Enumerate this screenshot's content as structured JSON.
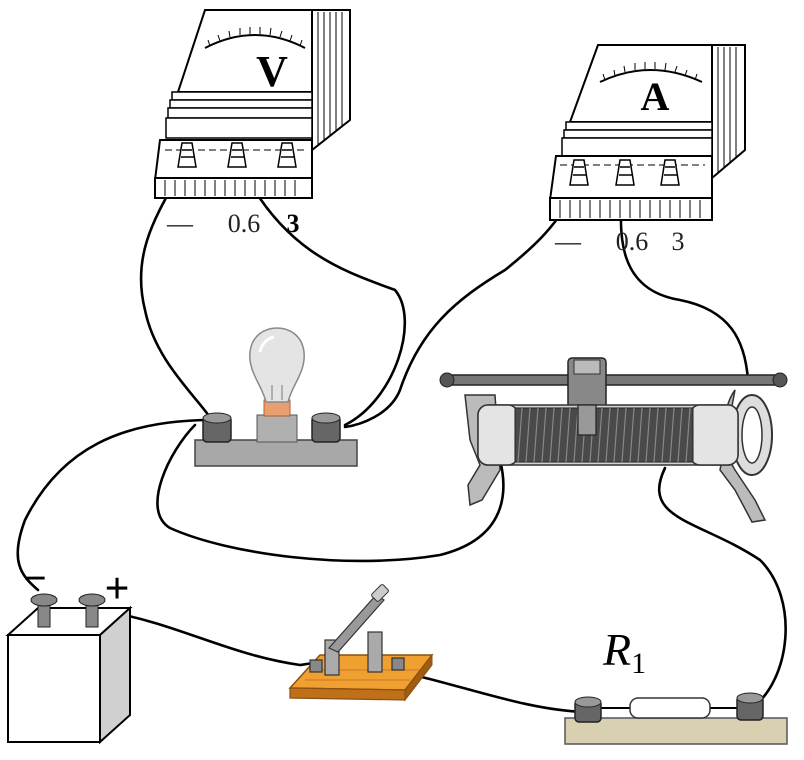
{
  "voltmeter": {
    "symbol": "V",
    "terminals": [
      "—",
      "0.6",
      "3"
    ]
  },
  "ammeter": {
    "symbol": "A",
    "terminals": [
      "—",
      "0.6",
      "3"
    ]
  },
  "battery": {
    "minus": "−",
    "plus": "+"
  },
  "resistor": {
    "label_main": "R",
    "label_sub": "1"
  },
  "colors": {
    "wire": "#000000",
    "base": "#a8a8a8",
    "switch_base": "#f0a030",
    "resistor_base": "#d8d0b0"
  }
}
